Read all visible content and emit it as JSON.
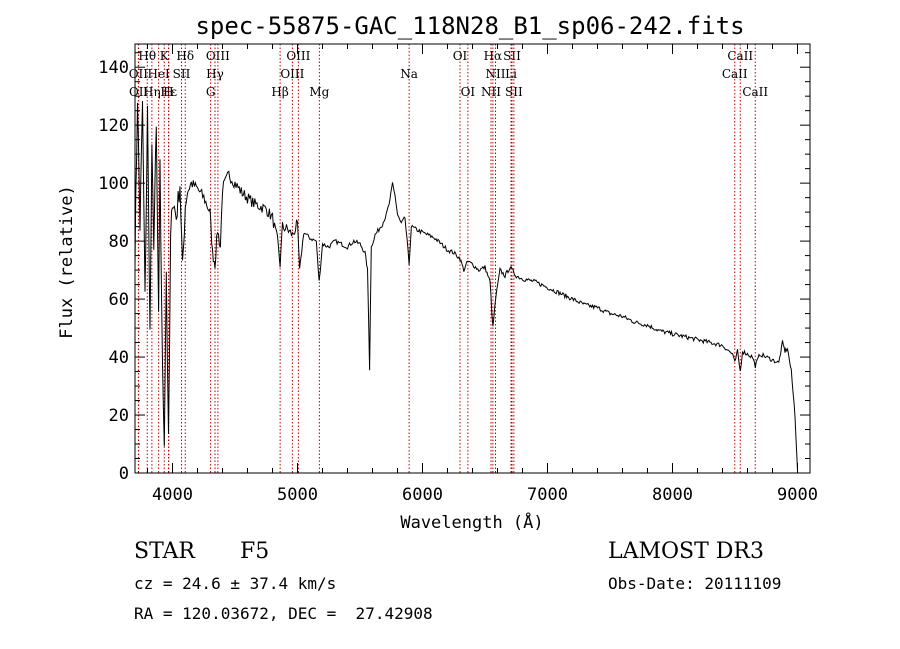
{
  "chart_data": {
    "type": "line",
    "title": "spec-55875-GAC_118N28_B1_sp06-242.fits",
    "xlabel": "Wavelength (Å)",
    "ylabel": "Flux (relative)",
    "xlim": [
      3700,
      9100
    ],
    "ylim": [
      0,
      148
    ],
    "xticks": [
      4000,
      5000,
      6000,
      7000,
      8000,
      9000
    ],
    "yticks": [
      0,
      20,
      40,
      60,
      80,
      100,
      120,
      140
    ],
    "series": [
      {
        "name": "flux",
        "x": [
          3700,
          3720,
          3740,
          3760,
          3780,
          3800,
          3820,
          3835,
          3850,
          3870,
          3889,
          3900,
          3920,
          3934,
          3950,
          3968,
          3985,
          4000,
          4030,
          4060,
          4080,
          4102,
          4120,
          4150,
          4200,
          4250,
          4300,
          4320,
          4340,
          4360,
          4383,
          4400,
          4450,
          4500,
          4550,
          4600,
          4650,
          4700,
          4750,
          4800,
          4840,
          4861,
          4880,
          4920,
          4960,
          5000,
          5017,
          5050,
          5100,
          5150,
          5173,
          5200,
          5250,
          5300,
          5350,
          5400,
          5450,
          5500,
          5540,
          5560,
          5577,
          5590,
          5620,
          5650,
          5680,
          5710,
          5740,
          5760,
          5780,
          5800,
          5830,
          5860,
          5893,
          5910,
          5950,
          6000,
          6050,
          6100,
          6150,
          6200,
          6250,
          6300,
          6330,
          6363,
          6400,
          6450,
          6500,
          6540,
          6563,
          6585,
          6620,
          6660,
          6700,
          6750,
          6800,
          6900,
          7000,
          7100,
          7200,
          7300,
          7400,
          7500,
          7600,
          7700,
          7800,
          7900,
          8000,
          8100,
          8200,
          8300,
          8400,
          8480,
          8498,
          8520,
          8542,
          8560,
          8600,
          8640,
          8662,
          8700,
          8750,
          8800,
          8850,
          8880,
          8900,
          8920,
          8950,
          8980,
          9000
        ],
        "y": [
          75,
          130,
          85,
          128,
          60,
          125,
          48,
          110,
          80,
          118,
          55,
          105,
          35,
          12,
          70,
          10,
          80,
          95,
          88,
          100,
          70,
          92,
          97,
          100,
          98,
          95,
          90,
          76,
          72,
          84,
          78,
          98,
          103,
          100,
          97,
          95,
          93,
          92,
          91,
          88,
          80,
          72,
          85,
          84,
          82,
          86,
          70,
          83,
          81,
          80,
          66,
          79,
          78,
          80,
          79,
          78,
          80,
          79,
          76,
          70,
          36,
          78,
          82,
          84,
          86,
          89,
          94,
          100,
          96,
          89,
          86,
          88,
          72,
          85,
          84,
          83,
          82,
          81,
          79,
          77,
          76,
          74,
          70,
          73,
          72,
          70,
          71,
          66,
          50,
          60,
          70,
          68,
          71,
          68,
          67,
          66,
          64,
          62,
          60,
          58,
          57,
          55,
          54,
          52,
          51,
          49,
          48,
          47,
          46,
          45,
          44,
          41,
          38,
          42,
          35,
          42,
          41,
          40,
          37,
          41,
          40,
          39,
          38,
          45,
          42,
          43,
          35,
          20,
          1
        ]
      }
    ],
    "lines": [
      {
        "label": "Hθ",
        "x": 3798,
        "row": 0
      },
      {
        "label": "K",
        "x": 3934,
        "row": 0
      },
      {
        "label": "Hδ",
        "x": 4102,
        "row": 0
      },
      {
        "label": "OIII",
        "x": 4363,
        "row": 0
      },
      {
        "label": "OIII",
        "x": 5007,
        "row": 0
      },
      {
        "label": "OI",
        "x": 6300,
        "row": 0
      },
      {
        "label": "Hα",
        "x": 6563,
        "row": 0
      },
      {
        "label": "SII",
        "x": 6716,
        "row": 0
      },
      {
        "label": "CaII",
        "x": 8542,
        "row": 0
      },
      {
        "label": "OII",
        "x": 3727,
        "row": 1
      },
      {
        "label": "HeI",
        "x": 3889,
        "row": 1
      },
      {
        "label": "SII",
        "x": 4072,
        "row": 1
      },
      {
        "label": "Hγ",
        "x": 4340,
        "row": 1
      },
      {
        "label": "OIII",
        "x": 4959,
        "row": 1
      },
      {
        "label": "Na",
        "x": 5893,
        "row": 1
      },
      {
        "label": "NII",
        "x": 6584,
        "row": 1
      },
      {
        "label": "Li",
        "x": 6708,
        "row": 1
      },
      {
        "label": "CaII",
        "x": 8498,
        "row": 1
      },
      {
        "label": "OII",
        "x": 3729,
        "row": 2
      },
      {
        "label": "Hε",
        "x": 3970,
        "row": 2
      },
      {
        "label": "Hη",
        "x": 3835,
        "row": 2
      },
      {
        "label": "H",
        "x": 3968,
        "row": 2
      },
      {
        "label": "G",
        "x": 4305,
        "row": 2
      },
      {
        "label": "Hβ",
        "x": 4861,
        "row": 2
      },
      {
        "label": "Mg",
        "x": 5175,
        "row": 2
      },
      {
        "label": "OI",
        "x": 6363,
        "row": 2
      },
      {
        "label": "NII",
        "x": 6548,
        "row": 2
      },
      {
        "label": "SII",
        "x": 6731,
        "row": 2
      },
      {
        "label": "CaII",
        "x": 8662,
        "row": 2
      }
    ]
  },
  "info": {
    "class": "STAR",
    "subclass": "F5",
    "redshift": "cz = 24.6 ± 37.4 km/s",
    "coords": "RA = 120.03672, DEC =  27.42908",
    "survey": "LAMOST DR3",
    "obs_date": "Obs-Date: 20111109"
  },
  "colors": {
    "line_marker": "#c00000",
    "spectrum": "#000000"
  }
}
